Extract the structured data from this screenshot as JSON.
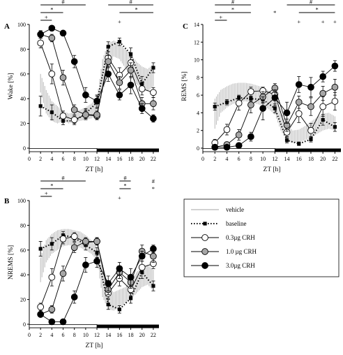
{
  "chart_data": [
    {
      "panel": "A",
      "type": "line",
      "ylabel": "Wake [%]",
      "xlabel": "ZT [h]",
      "ylim": [
        0,
        100
      ],
      "yticks": [
        0,
        20,
        40,
        60,
        80,
        100
      ],
      "xlim": [
        0,
        23
      ],
      "xticks": [
        0,
        2,
        4,
        6,
        8,
        10,
        12,
        14,
        16,
        18,
        20,
        22
      ],
      "x": [
        2,
        4,
        6,
        8,
        10,
        12,
        14,
        16,
        18,
        20,
        22
      ],
      "vehicle_band": {
        "x": [
          2,
          3,
          4,
          5,
          6,
          7,
          8,
          9,
          10,
          11,
          12,
          13,
          14,
          15,
          16,
          17,
          18,
          19,
          20,
          21,
          22
        ],
        "low": [
          45,
          28,
          22,
          20,
          22,
          20,
          21,
          22,
          23,
          24,
          27,
          45,
          62,
          74,
          72,
          65,
          58,
          52,
          48,
          46,
          50
        ],
        "high": [
          60,
          47,
          38,
          34,
          30,
          28,
          29,
          31,
          33,
          36,
          40,
          72,
          85,
          87,
          84,
          80,
          76,
          70,
          66,
          64,
          68
        ]
      },
      "series": [
        {
          "name": "baseline",
          "values": [
            34,
            29,
            22,
            22,
            28,
            37,
            82,
            86,
            76,
            52,
            65
          ],
          "err": [
            8,
            6,
            3,
            3,
            4,
            5,
            4,
            3,
            5,
            6,
            4
          ]
        },
        {
          "name": "0.3µg CRH",
          "values": [
            85,
            60,
            26,
            23,
            27,
            26,
            73,
            59,
            69,
            48,
            45
          ],
          "err": [
            4,
            8,
            4,
            3,
            4,
            3,
            5,
            6,
            5,
            5,
            4
          ]
        },
        {
          "name": "1.0 µg CRH",
          "values": [
            92,
            89,
            57,
            31,
            27,
            27,
            70,
            53,
            63,
            36,
            36
          ],
          "err": [
            3,
            3,
            6,
            4,
            3,
            3,
            5,
            5,
            6,
            5,
            5
          ]
        },
        {
          "name": "3.0µg CRH",
          "values": [
            92,
            97,
            93,
            70,
            43,
            38,
            60,
            43,
            51,
            32,
            24
          ],
          "err": [
            3,
            2,
            2,
            5,
            6,
            5,
            6,
            4,
            7,
            4,
            3
          ]
        }
      ],
      "sig_left": [
        {
          "label": "#",
          "x1": 2,
          "x2": 10
        },
        {
          "label": "*",
          "x1": 2,
          "x2": 6
        },
        {
          "label": "+",
          "x1": 2,
          "x2": 4
        }
      ],
      "sig_right": [
        {
          "label": "#",
          "x1": 14,
          "x2": 22
        },
        {
          "label": "*",
          "x1": 16,
          "x2": 22
        }
      ],
      "marks": [
        {
          "label": "+",
          "x": 16
        }
      ]
    },
    {
      "panel": "B",
      "type": "line",
      "ylabel": "NREMS [%]",
      "xlabel": "ZT [h]",
      "ylim": [
        0,
        100
      ],
      "yticks": [
        0,
        20,
        40,
        60,
        80,
        100
      ],
      "xlim": [
        0,
        23
      ],
      "xticks": [
        0,
        2,
        4,
        6,
        8,
        10,
        12,
        14,
        16,
        18,
        20,
        22
      ],
      "x": [
        2,
        4,
        6,
        8,
        10,
        12,
        14,
        16,
        18,
        20,
        22
      ],
      "vehicle_band": {
        "x": [
          2,
          3,
          4,
          5,
          6,
          7,
          8,
          9,
          10,
          11,
          12,
          13,
          14,
          15,
          16,
          17,
          18,
          19,
          20,
          21,
          22
        ],
        "low": [
          34,
          50,
          57,
          60,
          63,
          64,
          63,
          62,
          60,
          57,
          52,
          22,
          12,
          11,
          14,
          17,
          20,
          25,
          30,
          32,
          27
        ],
        "high": [
          54,
          68,
          73,
          76,
          77,
          77,
          76,
          75,
          72,
          68,
          62,
          43,
          30,
          26,
          28,
          30,
          35,
          42,
          46,
          48,
          44
        ]
      },
      "series": [
        {
          "name": "baseline",
          "values": [
            61,
            65,
            72,
            70,
            64,
            58,
            16,
            12,
            21,
            42,
            31
          ],
          "err": [
            6,
            5,
            3,
            3,
            4,
            4,
            4,
            3,
            4,
            5,
            4
          ]
        },
        {
          "name": "0.3µg CRH",
          "values": [
            14,
            38,
            69,
            71,
            66,
            67,
            25,
            37,
            28,
            46,
            49
          ],
          "err": [
            3,
            7,
            4,
            3,
            3,
            3,
            4,
            6,
            5,
            5,
            4
          ]
        },
        {
          "name": "1.0 µg CRH",
          "values": [
            8,
            12,
            41,
            62,
            67,
            67,
            28,
            42,
            34,
            59,
            55
          ],
          "err": [
            2,
            3,
            6,
            4,
            3,
            3,
            4,
            5,
            5,
            5,
            5
          ]
        },
        {
          "name": "3.0µg CRH",
          "values": [
            8,
            2,
            2,
            22,
            48,
            51,
            33,
            45,
            38,
            55,
            61
          ],
          "err": [
            2,
            1,
            1,
            5,
            6,
            5,
            6,
            5,
            7,
            4,
            3
          ]
        }
      ],
      "sig_left": [
        {
          "label": "#",
          "x1": 2,
          "x2": 10
        },
        {
          "label": "*",
          "x1": 2,
          "x2": 6
        },
        {
          "label": "+",
          "x1": 2,
          "x2": 4
        }
      ],
      "sig_right": [
        {
          "label": "#",
          "x1": 16,
          "x2": 18
        },
        {
          "label": "*",
          "x1": 16,
          "x2": 18
        }
      ],
      "marks": [
        {
          "label": "+",
          "x": 16
        },
        {
          "label": "#",
          "x": 22
        },
        {
          "label": "*",
          "x": 22
        }
      ]
    },
    {
      "panel": "C",
      "type": "line",
      "ylabel": "REMS [%]",
      "xlabel": "ZT [h]",
      "ylim": [
        0,
        14
      ],
      "yticks": [
        0,
        2,
        4,
        6,
        8,
        10,
        12,
        14
      ],
      "xlim": [
        0,
        23
      ],
      "xticks": [
        0,
        2,
        4,
        6,
        8,
        10,
        12,
        14,
        16,
        18,
        20,
        22
      ],
      "x": [
        2,
        4,
        6,
        8,
        10,
        12,
        14,
        16,
        18,
        20,
        22
      ],
      "vehicle_band": {
        "x": [
          2,
          3,
          4,
          5,
          6,
          7,
          8,
          9,
          10,
          11,
          12,
          13,
          14,
          15,
          16,
          17,
          18,
          19,
          20,
          21,
          22
        ],
        "low": [
          2.2,
          4.0,
          4.6,
          5.0,
          5.2,
          5.3,
          5.2,
          5.0,
          4.8,
          4.4,
          3.8,
          2.0,
          0.8,
          0.6,
          0.7,
          0.9,
          1.2,
          1.6,
          2.0,
          2.2,
          2.0
        ],
        "high": [
          5.6,
          6.6,
          7.0,
          7.3,
          7.4,
          7.4,
          7.3,
          7.1,
          6.9,
          6.5,
          5.9,
          4.2,
          2.6,
          2.0,
          2.1,
          2.5,
          3.0,
          3.5,
          3.9,
          4.0,
          3.6
        ]
      },
      "series": [
        {
          "name": "baseline",
          "values": [
            4.7,
            5.2,
            5.7,
            5.6,
            5.5,
            4.5,
            0.9,
            0.5,
            1.0,
            3.2,
            2.4
          ],
          "err": [
            0.4,
            0.3,
            0.3,
            0.3,
            0.4,
            0.5,
            0.3,
            0.2,
            0.3,
            0.6,
            0.5
          ]
        },
        {
          "name": "0.3µg CRH",
          "values": [
            0.6,
            2.1,
            5.1,
            6.4,
            6.5,
            6.1,
            1.8,
            3.9,
            2.0,
            4.7,
            5.3
          ],
          "err": [
            0.4,
            0.6,
            0.8,
            0.5,
            0.4,
            0.6,
            0.5,
            1.0,
            0.8,
            1.1,
            1.0
          ]
        },
        {
          "name": "1.0 µg CRH",
          "values": [
            0.1,
            0.4,
            1.5,
            4.9,
            5.8,
            6.8,
            2.6,
            5.2,
            4.7,
            6.2,
            6.9
          ],
          "err": [
            0.1,
            0.3,
            0.6,
            0.9,
            0.6,
            0.5,
            0.7,
            0.7,
            1.0,
            0.8,
            0.9
          ]
        },
        {
          "name": "3.0µg CRH",
          "values": [
            0.1,
            0.1,
            0.3,
            1.3,
            4.5,
            5.7,
            4.0,
            7.2,
            6.9,
            8.1,
            9.3
          ],
          "err": [
            0.1,
            0.1,
            0.2,
            0.5,
            1.3,
            0.9,
            1.2,
            0.9,
            1.1,
            0.6,
            0.6
          ]
        }
      ],
      "sig_left": [
        {
          "label": "#",
          "x1": 2,
          "x2": 8
        },
        {
          "label": "*",
          "x1": 2,
          "x2": 8
        },
        {
          "label": "+",
          "x1": 2,
          "x2": 4
        }
      ],
      "sig_right": [
        {
          "label": "#",
          "x1": 14,
          "x2": 22
        },
        {
          "label": "*",
          "x1": 16,
          "x2": 22
        }
      ],
      "marks": [
        {
          "label": "*",
          "x": 12
        },
        {
          "label": "+",
          "x": 16
        },
        {
          "label": "+",
          "x": 20
        },
        {
          "label": "+",
          "x": 22
        }
      ]
    }
  ],
  "legend": {
    "items": [
      {
        "label": "vehicle",
        "kind": "band"
      },
      {
        "label": "baseline",
        "kind": "dotted-square"
      },
      {
        "label": "0.3µg CRH",
        "kind": "white"
      },
      {
        "label": "1.0 µg CRH",
        "kind": "gray"
      },
      {
        "label": "3.0µg CRH",
        "kind": "black"
      }
    ]
  },
  "style": {
    "band_color": "#b8b8b8",
    "white_fill": "#ffffff",
    "gray_fill": "#a6a6a6",
    "black_fill": "#000000",
    "light_bar": "#ffffff",
    "dark_bar": "#000000"
  }
}
